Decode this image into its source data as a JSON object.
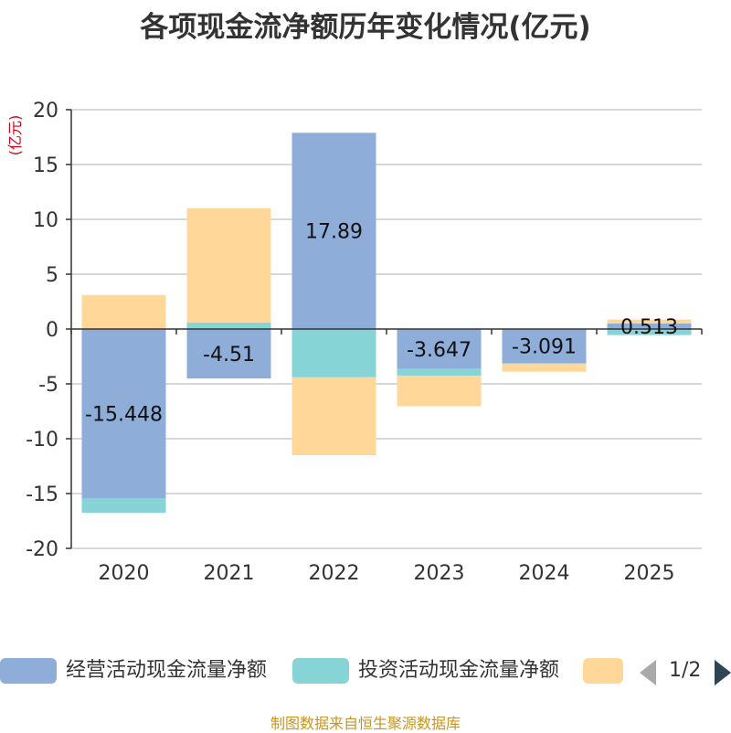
{
  "chart_data": {
    "type": "bar",
    "stacked": true,
    "title": "各项现金流净额历年变化情况(亿元)",
    "ylabel": "(亿元)",
    "xlabel": "",
    "ylim": [
      -20,
      20
    ],
    "yticks": [
      20,
      15,
      10,
      5,
      0,
      -5,
      -10,
      -15,
      -20
    ],
    "categories": [
      "2020",
      "2021",
      "2022",
      "2023",
      "2024",
      "2025"
    ],
    "series": [
      {
        "name": "经营活动现金流量净额",
        "color": "#8eadd9",
        "values": [
          -15.448,
          -4.51,
          17.89,
          -3.647,
          -3.091,
          0.513
        ],
        "labels": [
          "-15.448",
          "-4.51",
          "17.89",
          "-3.647",
          "-3.091",
          "0.513"
        ]
      },
      {
        "name": "投资活动现金流量净额",
        "color": "#86d4d6",
        "values": [
          -1.3,
          0.6,
          -4.4,
          -0.6,
          -0.1,
          -0.55
        ]
      },
      {
        "name": "",
        "color": "#ffd899",
        "values": [
          3.1,
          10.4,
          -7.1,
          -2.8,
          -0.7,
          0.35
        ]
      }
    ],
    "legend_page": "1/2"
  },
  "source": "制图数据来自恒生聚源数据库"
}
